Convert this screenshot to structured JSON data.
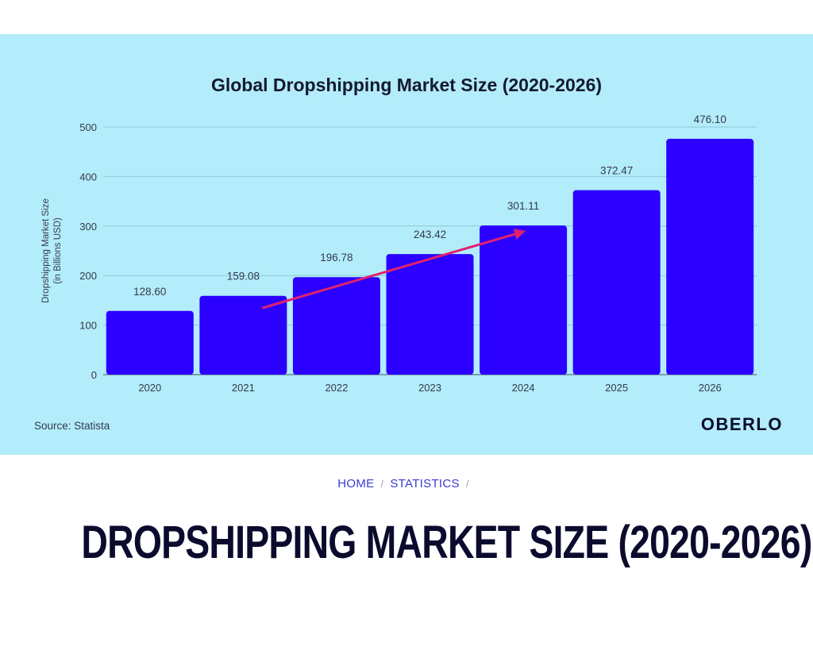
{
  "chart_data": {
    "type": "bar",
    "title": "Global Dropshipping Market Size (2020-2026)",
    "ylabel_line1": "Dropshipping Market Size",
    "ylabel_line2": "(in Billions USD)",
    "categories": [
      "2020",
      "2021",
      "2022",
      "2023",
      "2024",
      "2025",
      "2026"
    ],
    "values": [
      128.6,
      159.08,
      196.78,
      243.42,
      301.11,
      372.47,
      476.1
    ],
    "value_labels": [
      "128.60",
      "159.08",
      "196.78",
      "243.42",
      "301.11",
      "372.47",
      "476.10"
    ],
    "ylim": [
      0,
      500
    ],
    "yticks": [
      0,
      100,
      200,
      300,
      400,
      500
    ],
    "grid": true,
    "bar_color": "#2b00ff",
    "trend_arrow": {
      "from": [
        "2021",
        135
      ],
      "to": [
        "2024",
        290
      ],
      "color": "#e0226e"
    }
  },
  "source": "Source: Statista",
  "logo": "OBERLO",
  "breadcrumb": {
    "home": "HOME",
    "statistics": "STATISTICS",
    "separator": "/"
  },
  "page_title": "DROPSHIPPING MARKET SIZE (2020-2026)"
}
